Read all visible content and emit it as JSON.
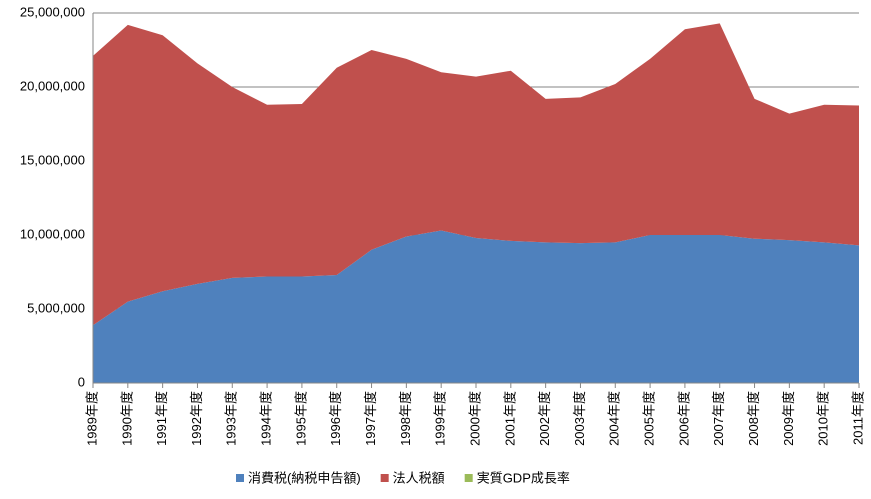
{
  "chart_data": {
    "type": "stacked_area",
    "categories": [
      "1989年度",
      "1990年度",
      "1991年度",
      "1992年度",
      "1993年度",
      "1994年度",
      "1995年度",
      "1996年度",
      "1997年度",
      "1998年度",
      "1999年度",
      "2000年度",
      "2001年度",
      "2002年度",
      "2003年度",
      "2004年度",
      "2005年度",
      "2006年度",
      "2007年度",
      "2008年度",
      "2009年度",
      "2010年度",
      "2011年度"
    ],
    "series": [
      {
        "name": "消費税(納税申告額)",
        "color": "#4f81bd",
        "values": [
          3900000,
          5500000,
          6200000,
          6700000,
          7100000,
          7200000,
          7200000,
          7300000,
          9000000,
          9900000,
          10300000,
          9800000,
          9600000,
          9500000,
          9450000,
          9500000,
          10000000,
          10000000,
          10000000,
          9750000,
          9650000,
          9500000,
          9300000
        ]
      },
      {
        "name": "法人税額",
        "color": "#c0504d",
        "values": [
          18200000,
          18700000,
          17300000,
          14900000,
          12900000,
          11600000,
          11650000,
          14000000,
          13500000,
          12000000,
          10700000,
          10900000,
          11500000,
          9700000,
          9850000,
          10700000,
          11900000,
          13900000,
          14300000,
          9450000,
          8550000,
          9300000,
          9450000
        ]
      },
      {
        "name": "実質GDP成長率",
        "color": "#9bbb59",
        "values": [
          0,
          0,
          0,
          0,
          0,
          0,
          0,
          0,
          0,
          0,
          0,
          0,
          0,
          0,
          0,
          0,
          0,
          0,
          0,
          0,
          0,
          0,
          0
        ]
      }
    ],
    "ylim": [
      0,
      25000000
    ],
    "yticks": [
      0,
      {
        "value": 5000000,
        "label": "5,000,000"
      },
      {
        "value": 10000000,
        "label": "10,000,000"
      },
      {
        "value": 15000000,
        "label": "15,000,000"
      },
      {
        "value": 20000000,
        "label": "20,000,000"
      },
      {
        "value": 25000000,
        "label": "25,000,000"
      }
    ],
    "grid": true,
    "legend": "bottom"
  }
}
